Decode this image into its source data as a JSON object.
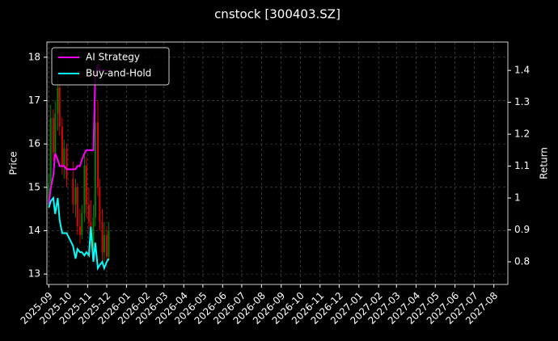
{
  "chart_data": {
    "type": "candlestick",
    "title": "cnstock [300403.SZ]",
    "ylabel": "Price",
    "y2label": "Return",
    "x": [
      "2025-09-01",
      "2025-09-04",
      "2025-09-08",
      "2025-09-11",
      "2025-09-15",
      "2025-09-18",
      "2025-09-22",
      "2025-09-25",
      "2025-09-29",
      "2025-10-09",
      "2025-10-13",
      "2025-10-16",
      "2025-10-20",
      "2025-10-23",
      "2025-10-27",
      "2025-10-30",
      "2025-11-03",
      "2025-11-06",
      "2025-11-10",
      "2025-11-13",
      "2025-11-17",
      "2025-11-20",
      "2025-11-24",
      "2025-11-27",
      "2025-12-01",
      "2025-12-04"
    ],
    "open": [
      14.6,
      15.1,
      16.6,
      15.8,
      16.7,
      17.3,
      16.4,
      15.5,
      15.9,
      15.2,
      14.6,
      15.0,
      14.1,
      13.9,
      14.4,
      15.5,
      14.6,
      14.2,
      13.7,
      14.3,
      16.5,
      15.0,
      14.2,
      13.5,
      13.9,
      13.4
    ],
    "high": [
      15.3,
      16.9,
      16.8,
      17.0,
      17.6,
      17.4,
      16.6,
      16.1,
      16.0,
      15.6,
      15.2,
      15.1,
      14.5,
      14.6,
      15.8,
      15.7,
      15.0,
      14.7,
      14.6,
      16.8,
      17.0,
      15.2,
      14.5,
      14.2,
      14.1,
      14.2
    ],
    "low": [
      14.5,
      15.0,
      15.6,
      15.7,
      16.3,
      16.2,
      15.3,
      15.2,
      15.0,
      14.4,
      14.3,
      13.9,
      13.7,
      13.8,
      14.2,
      14.3,
      13.9,
      13.5,
      13.4,
      14.1,
      14.8,
      14.0,
      13.2,
      13.3,
      13.2,
      13.3
    ],
    "close": [
      15.1,
      16.6,
      15.8,
      16.7,
      17.3,
      16.4,
      15.5,
      15.9,
      15.2,
      14.6,
      15.0,
      14.1,
      13.9,
      14.4,
      15.5,
      14.6,
      14.2,
      13.7,
      14.3,
      16.5,
      15.0,
      14.2,
      13.5,
      13.9,
      13.4,
      14.0
    ],
    "up_color": "#008000",
    "down_color": "#e00000",
    "series": [
      {
        "name": "AI Strategy",
        "color": "#ff00ff",
        "axis": "y2",
        "values": [
          0.98,
          1.03,
          1.07,
          1.14,
          1.12,
          1.1,
          1.1,
          1.1,
          1.09,
          1.09,
          1.09,
          1.1,
          1.1,
          1.12,
          1.14,
          1.15,
          1.15,
          1.15,
          1.15,
          1.38,
          1.42,
          1.4,
          1.4,
          1.4,
          1.4,
          1.4
        ]
      },
      {
        "name": "Buy-and-Hold",
        "color": "#00ffff",
        "axis": "y2",
        "values": [
          0.97,
          0.99,
          1.0,
          0.95,
          1.0,
          0.93,
          0.89,
          0.89,
          0.89,
          0.85,
          0.81,
          0.84,
          0.83,
          0.83,
          0.82,
          0.83,
          0.82,
          0.91,
          0.8,
          0.86,
          0.78,
          0.79,
          0.8,
          0.78,
          0.8,
          0.81
        ]
      }
    ],
    "xlim": [
      "2025-08-29",
      "2027-08-23"
    ],
    "xticks": [
      "2025-09",
      "2025-10",
      "2025-11",
      "2025-12",
      "2026-01",
      "2026-02",
      "2026-03",
      "2026-04",
      "2026-05",
      "2026-06",
      "2026-07",
      "2026-08",
      "2026-09",
      "2026-10",
      "2026-11",
      "2026-12",
      "2027-01",
      "2027-02",
      "2027-03",
      "2027-04",
      "2027-05",
      "2027-06",
      "2027-07",
      "2027-08"
    ],
    "ylim": [
      12.76,
      18.35
    ],
    "yticks": [
      13,
      14,
      15,
      16,
      17,
      18
    ],
    "y2lim": [
      0.729,
      1.489
    ],
    "y2ticks": [
      0.8,
      0.9,
      1.0,
      1.1,
      1.2,
      1.3,
      1.4
    ],
    "grid": true,
    "legend": "upper left"
  }
}
